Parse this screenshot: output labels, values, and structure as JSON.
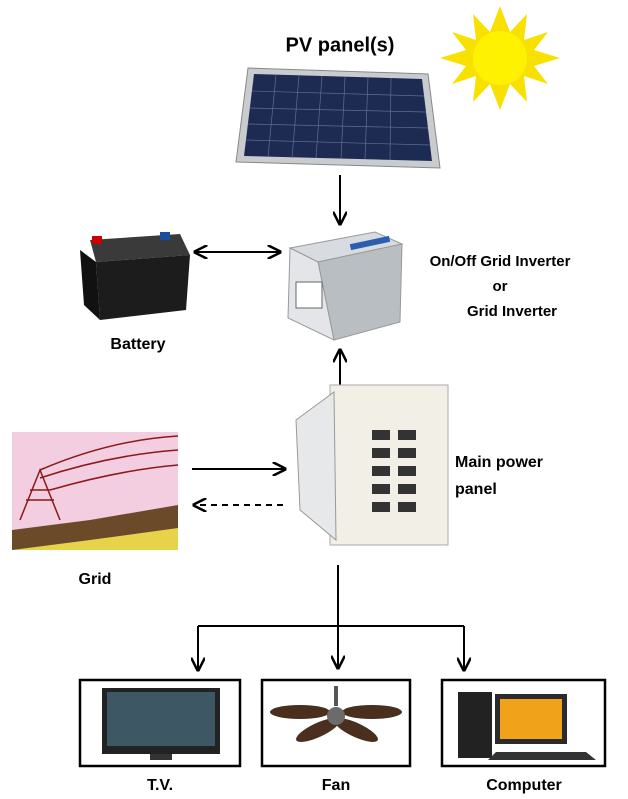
{
  "nodes": [
    {
      "label": "PV panel(s)"
    },
    {
      "lines": [
        "On/Off Grid Inverter",
        "or",
        "Grid Inverter"
      ]
    },
    {
      "label": "Battery"
    },
    {
      "lines": [
        "Main power",
        "panel"
      ]
    },
    {
      "label": "Grid"
    },
    {
      "label": "T.V."
    },
    {
      "label": "Fan"
    },
    {
      "label": "Computer"
    }
  ]
}
